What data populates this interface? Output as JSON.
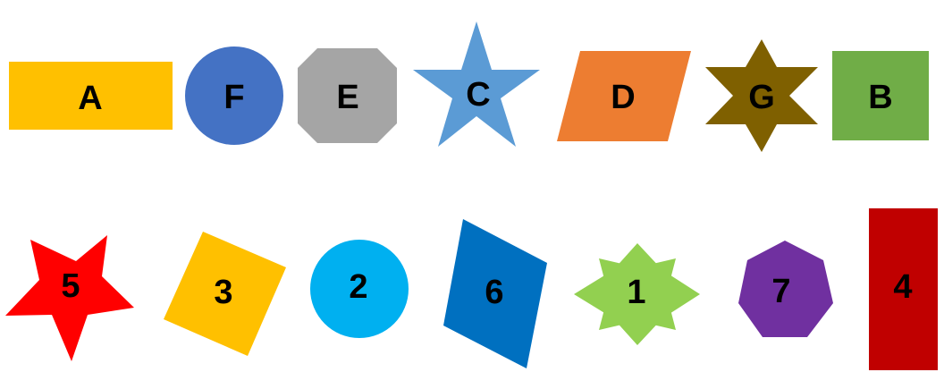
{
  "top_row": [
    {
      "label": "A",
      "shape": "rectangle",
      "color": "#FFC000"
    },
    {
      "label": "F",
      "shape": "circle",
      "color": "#4472C4"
    },
    {
      "label": "E",
      "shape": "octagon",
      "color": "#A5A5A5"
    },
    {
      "label": "C",
      "shape": "five-point-star",
      "color": "#5B9BD5"
    },
    {
      "label": "D",
      "shape": "parallelogram",
      "color": "#ED7D31"
    },
    {
      "label": "G",
      "shape": "six-point-star",
      "color": "#7F6000"
    },
    {
      "label": "B",
      "shape": "square",
      "color": "#70AD47"
    }
  ],
  "bottom_row": [
    {
      "label": "5",
      "shape": "five-point-star",
      "color": "#FF0000"
    },
    {
      "label": "3",
      "shape": "square",
      "color": "#FFC000"
    },
    {
      "label": "2",
      "shape": "circle",
      "color": "#00B0F0"
    },
    {
      "label": "6",
      "shape": "parallelogram",
      "color": "#0070C0"
    },
    {
      "label": "1",
      "shape": "six-point-star",
      "color": "#92D050"
    },
    {
      "label": "7",
      "shape": "heptagon",
      "color": "#7030A0"
    },
    {
      "label": "4",
      "shape": "rectangle",
      "color": "#C00000"
    }
  ]
}
